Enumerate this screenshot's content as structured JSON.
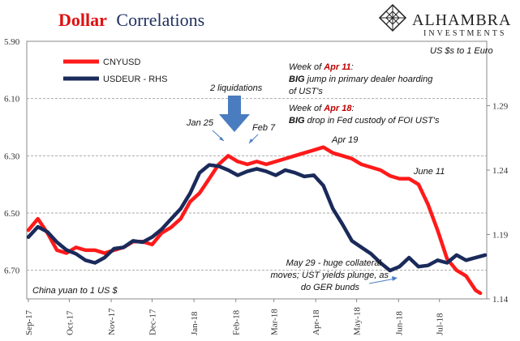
{
  "chart_data": {
    "type": "line",
    "title": "Dollar Correlations",
    "title_parts": [
      "Dollar",
      "Correlations"
    ],
    "brand": {
      "name": "ALHAMBRA",
      "sub": "INVESTMENTS",
      "logo_icon": "diamond-lattice-icon"
    },
    "left_axis_label": "China yuan to 1 US $",
    "right_axis_label": "US $s to 1 Euro",
    "y_left": {
      "min": 5.9,
      "max": 6.8,
      "ticks": [
        "5.90",
        "6.10",
        "6.30",
        "6.50",
        "6.70"
      ],
      "tick_values": [
        5.9,
        6.1,
        6.3,
        6.5,
        6.7
      ],
      "inverted": true
    },
    "y_right": {
      "min": 1.14,
      "max": 1.34,
      "ticks": [
        "1.14",
        "1.19",
        "1.24",
        "1.29"
      ],
      "tick_values": [
        1.14,
        1.19,
        1.24,
        1.29
      ]
    },
    "x_labels": [
      "Sep-17",
      "Oct-17",
      "Nov-17",
      "Dec-17",
      "Jan-18",
      "Feb-18",
      "Mar-18",
      "Apr-18",
      "May-18",
      "Jun-18",
      "Jul-18"
    ],
    "x_range_weeks": [
      0,
      48
    ],
    "x_label_weeks": [
      0,
      4.3,
      8.7,
      13,
      17.4,
      21.8,
      25.8,
      30.2,
      34.5,
      38.9,
      43.2
    ],
    "grid": "horizontal-dashed",
    "legend_position": "top-left",
    "series": [
      {
        "name": "CNYUSD",
        "axis": "left",
        "color": "#ff1a1a",
        "x": [
          0,
          1,
          2,
          3,
          4,
          5,
          6,
          7,
          8,
          9,
          10,
          11,
          12,
          13,
          14,
          15,
          16,
          17,
          18,
          19,
          20,
          21,
          22,
          23,
          24,
          25,
          26,
          27,
          28,
          29,
          30,
          31,
          32,
          33,
          34,
          35,
          36,
          37,
          38,
          39,
          40,
          41,
          42,
          43,
          44,
          45,
          46,
          47,
          47.5
        ],
        "values": [
          6.56,
          6.52,
          6.57,
          6.63,
          6.64,
          6.62,
          6.63,
          6.63,
          6.64,
          6.63,
          6.62,
          6.6,
          6.6,
          6.61,
          6.57,
          6.55,
          6.52,
          6.46,
          6.43,
          6.38,
          6.33,
          6.3,
          6.32,
          6.33,
          6.32,
          6.33,
          6.32,
          6.31,
          6.3,
          6.29,
          6.28,
          6.27,
          6.29,
          6.3,
          6.31,
          6.33,
          6.34,
          6.35,
          6.37,
          6.38,
          6.38,
          6.4,
          6.47,
          6.56,
          6.66,
          6.7,
          6.72,
          6.77,
          6.78
        ]
      },
      {
        "name": "USDEUR - RHS",
        "axis": "right",
        "color": "#1a2a5a",
        "x": [
          0,
          1,
          2,
          3,
          4,
          5,
          6,
          7,
          8,
          9,
          10,
          11,
          12,
          13,
          14,
          15,
          16,
          17,
          18,
          19,
          20,
          21,
          22,
          23,
          24,
          25,
          26,
          27,
          28,
          29,
          30,
          31,
          32,
          33,
          34,
          35,
          36,
          37,
          38,
          39,
          40,
          41,
          42,
          43,
          44,
          45,
          46,
          47,
          48
        ],
        "values": [
          1.188,
          1.196,
          1.192,
          1.184,
          1.178,
          1.175,
          1.17,
          1.168,
          1.172,
          1.179,
          1.18,
          1.185,
          1.184,
          1.188,
          1.194,
          1.202,
          1.21,
          1.222,
          1.238,
          1.244,
          1.243,
          1.24,
          1.236,
          1.239,
          1.241,
          1.239,
          1.236,
          1.24,
          1.238,
          1.235,
          1.236,
          1.228,
          1.21,
          1.198,
          1.185,
          1.18,
          1.175,
          1.168,
          1.162,
          1.165,
          1.172,
          1.165,
          1.166,
          1.17,
          1.168,
          1.174,
          1.17,
          1.172,
          1.174
        ]
      }
    ],
    "annotations": {
      "liquidations": "2 liquidations",
      "jan25": "Jan 25",
      "feb7": "Feb 7",
      "apr19": "Apr 19",
      "june11": "June 11",
      "week1": {
        "pre": "Week of ",
        "date": "Apr 11",
        "post": ":",
        "bold": "BIG",
        "rest1": " jump in primary dealer hoarding",
        "rest2": "of UST's"
      },
      "week2": {
        "pre": "Week of ",
        "date": "Apr 18",
        "post": ":",
        "bold": "BIG",
        "rest1": " drop in Fed custody of FOI UST's"
      },
      "may29_lines": [
        "May 29 - huge collateral",
        "moves; UST yields plunge, as",
        "do GER bunds"
      ]
    }
  }
}
